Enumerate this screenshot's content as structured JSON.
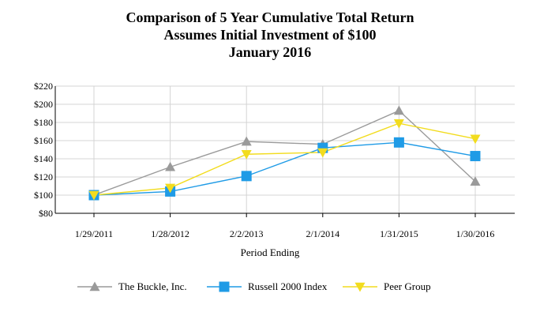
{
  "chart_data": {
    "type": "line",
    "title_lines": [
      "Comparison of 5 Year Cumulative Total Return",
      "Assumes Initial Investment of $100",
      "January 2016"
    ],
    "xlabel": "Period Ending",
    "ylabel": "",
    "categories": [
      "1/29/2011",
      "1/28/2012",
      "2/2/2013",
      "2/1/2014",
      "1/31/2015",
      "1/30/2016"
    ],
    "ylim": [
      80,
      220
    ],
    "yticks": [
      80,
      100,
      120,
      140,
      160,
      180,
      200,
      220
    ],
    "ytick_labels": [
      "$80",
      "$100",
      "$120",
      "$140",
      "$160",
      "$180",
      "$200",
      "$220"
    ],
    "grid": true,
    "legend_position": "bottom",
    "series": [
      {
        "name": "The Buckle, Inc.",
        "color": "#9a9a9a",
        "marker": "triangle-up",
        "values": [
          100,
          131,
          159,
          156,
          193,
          115
        ]
      },
      {
        "name": "Russell 2000 Index",
        "color": "#1f9be6",
        "marker": "square",
        "values": [
          100,
          104,
          121,
          152,
          158,
          143
        ]
      },
      {
        "name": "Peer Group",
        "color": "#f2dc1e",
        "marker": "triangle-down",
        "values": [
          100,
          108,
          145,
          147,
          179,
          162
        ]
      }
    ]
  }
}
